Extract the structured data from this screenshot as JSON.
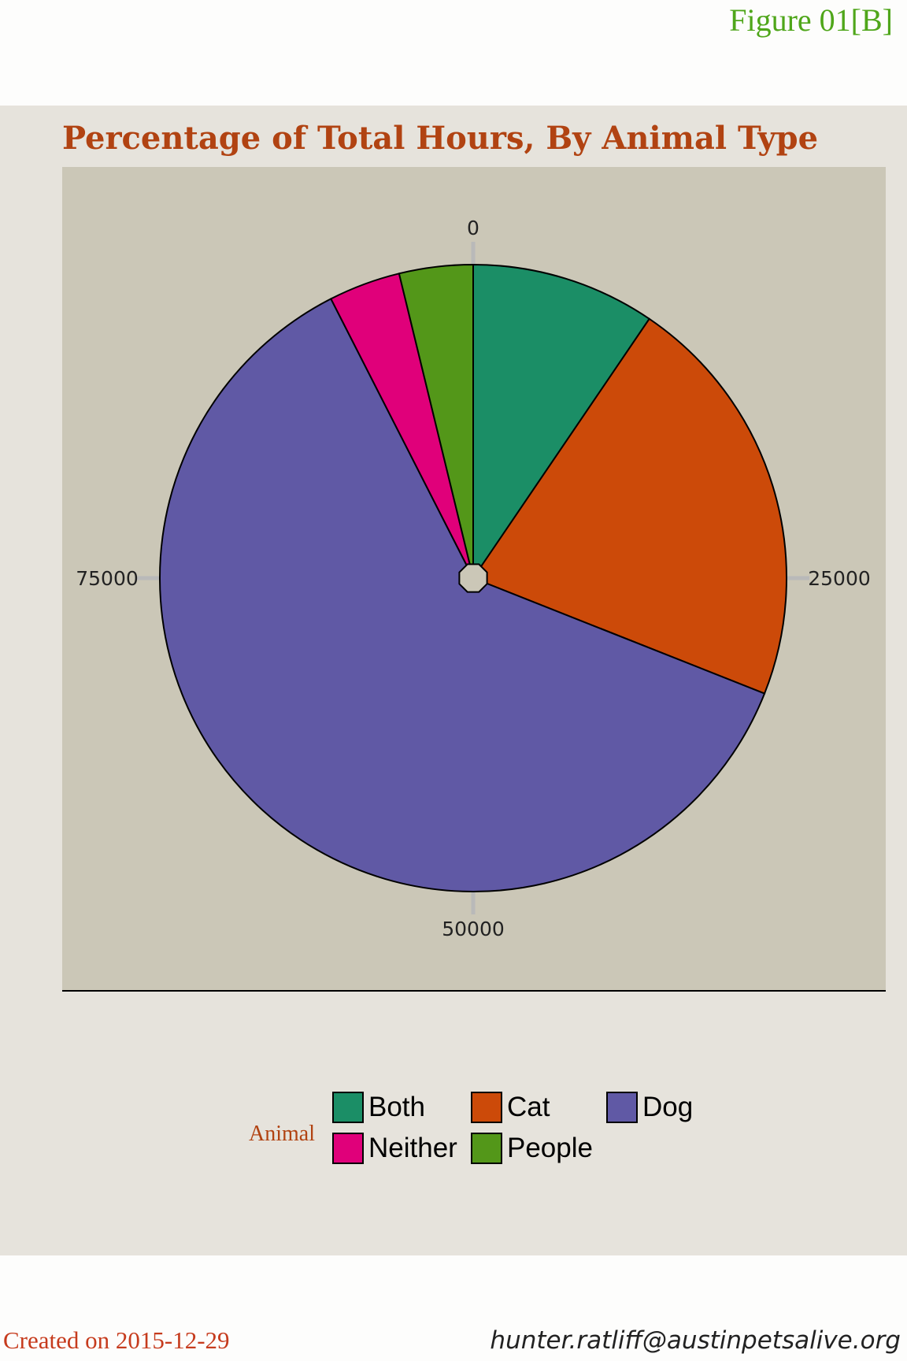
{
  "figure_label": "Figure 01[B]",
  "footer": {
    "created": "Created on 2015-12-29",
    "email": "hunter.ratliff@austinpetsalive.org"
  },
  "chart_data": {
    "type": "pie",
    "title": "Percentage of Total Hours, By Animal Type",
    "legend_title": "Animal",
    "legend_position": "bottom",
    "axis_max": 100000,
    "axis_ticks": [
      0,
      25000,
      50000,
      75000
    ],
    "slices": [
      {
        "name": "Both",
        "value": 9500,
        "color": "#1b8e66"
      },
      {
        "name": "Cat",
        "value": 21500,
        "color": "#cc4a09"
      },
      {
        "name": "Dog",
        "value": 61500,
        "color": "#6059a5"
      },
      {
        "name": "Neither",
        "value": 3700,
        "color": "#e0007a"
      },
      {
        "name": "People",
        "value": 3800,
        "color": "#539719"
      }
    ],
    "panel_background": "#cbc7b7"
  }
}
